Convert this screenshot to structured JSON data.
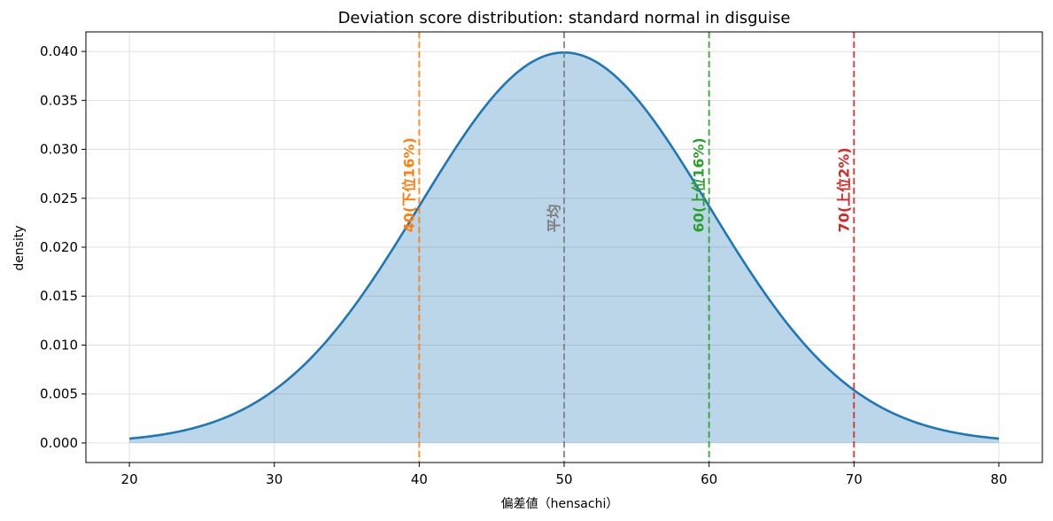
{
  "chart_data": {
    "type": "area",
    "title": "Deviation score distribution: standard normal in disguise",
    "xlabel": "偏差値（hensachi）",
    "ylabel": "density",
    "xlim": [
      17,
      83
    ],
    "ylim": [
      -0.002,
      0.042
    ],
    "xticks": [
      20,
      30,
      40,
      50,
      60,
      70,
      80
    ],
    "yticks": [
      0.0,
      0.005,
      0.01,
      0.015,
      0.02,
      0.025,
      0.03,
      0.035,
      0.04
    ],
    "ytick_labels": [
      "0.000",
      "0.005",
      "0.010",
      "0.015",
      "0.020",
      "0.025",
      "0.030",
      "0.035",
      "0.040"
    ],
    "grid": true,
    "curve": {
      "distribution": "normal",
      "mean": 50,
      "sd": 10,
      "x_range": [
        20,
        80
      ],
      "color": "#1f77b4",
      "fill_color": "#1f77b4",
      "fill_opacity": 0.3
    },
    "vlines": [
      {
        "x": 40,
        "label": "40(下位16%)",
        "color": "#ff7f0e"
      },
      {
        "x": 50,
        "label": "平均",
        "color": "#7f7f7f"
      },
      {
        "x": 60,
        "label": "60(上位16%)",
        "color": "#2ca02c"
      },
      {
        "x": 70,
        "label": "70(上位2%)",
        "color": "#d62728"
      }
    ]
  }
}
